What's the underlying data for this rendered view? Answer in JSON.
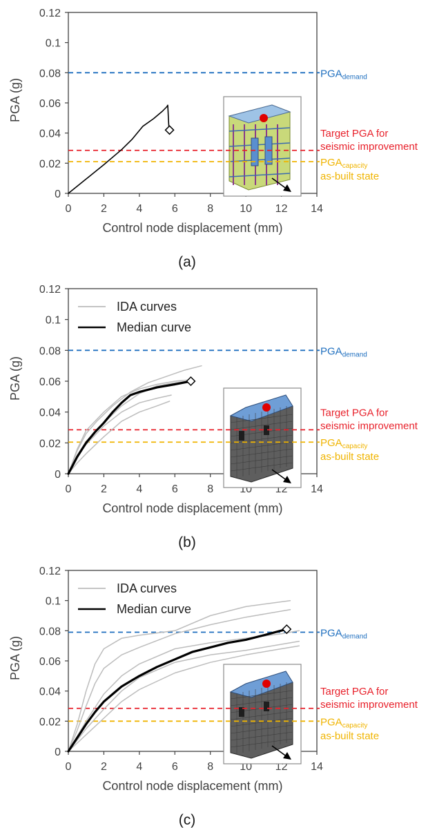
{
  "colors": {
    "demand": "#1f6fbf",
    "target": "#e8212b",
    "capacity": "#f0b400",
    "axis": "#404040",
    "ida": "#bcbcbc",
    "median": "#000000"
  },
  "chart_data": [
    {
      "panel": "(a)",
      "type": "line",
      "xlabel": "Control node displacement (mm)",
      "ylabel": "PGA (g)",
      "xlim": [
        0,
        14
      ],
      "ylim": [
        0,
        0.12
      ],
      "xticks": [
        "0",
        "2",
        "4",
        "6",
        "8",
        "10",
        "12",
        "14"
      ],
      "yticks": [
        "0",
        "0.02",
        "0.04",
        "0.06",
        "0.08",
        "0.1",
        "0.12"
      ],
      "legend": [],
      "series": [
        {
          "kind": "main",
          "x": [
            0,
            1,
            2,
            3,
            3.6,
            4.2,
            4.8,
            5.3,
            5.55,
            5.6,
            5.62,
            5.64,
            5.66,
            5.7
          ],
          "y": [
            0,
            0.0095,
            0.019,
            0.029,
            0.036,
            0.0445,
            0.0495,
            0.0545,
            0.0575,
            0.0585,
            0.054,
            0.049,
            0.045,
            0.042
          ]
        }
      ],
      "marker": {
        "x": 5.7,
        "y": 0.042
      },
      "hlines": {
        "demand": 0.08,
        "target": 0.0285,
        "capacity": 0.021
      },
      "annotations": {
        "demand_base": "PGA",
        "demand_sub": "demand",
        "target_line1": "Target PGA for",
        "target_line2": "seismic improvement",
        "capacity_base": "PGA",
        "capacity_sub": "capacity",
        "capacity_line2": "as-built state"
      },
      "inset": "frame-model"
    },
    {
      "panel": "(b)",
      "type": "line",
      "xlabel": "Control node displacement (mm)",
      "ylabel": "PGA (g)",
      "xlim": [
        0,
        14
      ],
      "ylim": [
        0,
        0.12
      ],
      "xticks": [
        "0",
        "2",
        "4",
        "6",
        "8",
        "10",
        "12",
        "14"
      ],
      "yticks": [
        "0",
        "0.02",
        "0.04",
        "0.06",
        "0.08",
        "0.1",
        "0.12"
      ],
      "legend": [
        "IDA curves",
        "Median curve"
      ],
      "series": [
        {
          "kind": "ida",
          "x": [
            0,
            0.5,
            1,
            1.6,
            2.5,
            3.5,
            4.5,
            5.5,
            6.5,
            7.5
          ],
          "y": [
            0,
            0.015,
            0.026,
            0.034,
            0.044,
            0.053,
            0.059,
            0.063,
            0.067,
            0.07
          ]
        },
        {
          "kind": "ida",
          "x": [
            0,
            0.5,
            1,
            2,
            3,
            4,
            5,
            6,
            7
          ],
          "y": [
            0,
            0.016,
            0.028,
            0.04,
            0.05,
            0.055,
            0.058,
            0.06,
            0.061
          ]
        },
        {
          "kind": "ida",
          "x": [
            0,
            0.5,
            1,
            2,
            3,
            4,
            5,
            6,
            6.8
          ],
          "y": [
            0,
            0.012,
            0.021,
            0.033,
            0.044,
            0.052,
            0.057,
            0.059,
            0.06
          ]
        },
        {
          "kind": "ida",
          "x": [
            0,
            0.5,
            1,
            2,
            3,
            4,
            5,
            5.8
          ],
          "y": [
            0,
            0.011,
            0.019,
            0.031,
            0.04,
            0.046,
            0.049,
            0.051
          ]
        },
        {
          "kind": "ida",
          "x": [
            0,
            0.5,
            1,
            2,
            3,
            4,
            5,
            5.7
          ],
          "y": [
            0,
            0.007,
            0.013,
            0.024,
            0.034,
            0.04,
            0.044,
            0.047
          ]
        },
        {
          "kind": "median",
          "x": [
            0,
            0.5,
            1,
            1.5,
            2,
            2.5,
            3,
            3.5,
            4,
            5,
            6,
            6.9
          ],
          "y": [
            0,
            0.011,
            0.02,
            0.027,
            0.033,
            0.04,
            0.046,
            0.051,
            0.053,
            0.056,
            0.058,
            0.06
          ]
        }
      ],
      "marker": {
        "x": 6.9,
        "y": 0.06
      },
      "hlines": {
        "demand": 0.08,
        "target": 0.0285,
        "capacity": 0.0205
      },
      "annotations": {
        "demand_base": "PGA",
        "demand_sub": "demand",
        "target_line1": "Target PGA for",
        "target_line2": "seismic improvement",
        "capacity_base": "PGA",
        "capacity_sub": "capacity",
        "capacity_line2": "as-built state"
      },
      "inset": "mesh-model"
    },
    {
      "panel": "(c)",
      "type": "line",
      "xlabel": "Control node displacement (mm)",
      "ylabel": "PGA (g)",
      "xlim": [
        0,
        14
      ],
      "ylim": [
        0,
        0.12
      ],
      "xticks": [
        "0",
        "2",
        "4",
        "6",
        "8",
        "10",
        "12",
        "14"
      ],
      "yticks": [
        "0",
        "0.02",
        "0.04",
        "0.06",
        "0.08",
        "0.1",
        "0.12"
      ],
      "legend": [
        "IDA curves",
        "Median curve"
      ],
      "series": [
        {
          "kind": "ida",
          "x": [
            0,
            0.5,
            1,
            1.5,
            2,
            3,
            4,
            6,
            8,
            10,
            12.5
          ],
          "y": [
            0,
            0.018,
            0.04,
            0.058,
            0.068,
            0.075,
            0.077,
            0.08,
            0.09,
            0.096,
            0.1
          ]
        },
        {
          "kind": "ida",
          "x": [
            0,
            0.5,
            1,
            1.5,
            2,
            3,
            4,
            6,
            8,
            10,
            12.5
          ],
          "y": [
            0,
            0.014,
            0.03,
            0.045,
            0.055,
            0.064,
            0.069,
            0.078,
            0.084,
            0.089,
            0.094
          ]
        },
        {
          "kind": "ida",
          "x": [
            0,
            1,
            2,
            3,
            4,
            6,
            8,
            10,
            12,
            13
          ],
          "y": [
            0,
            0.02,
            0.038,
            0.05,
            0.058,
            0.068,
            0.072,
            0.075,
            0.078,
            0.08
          ]
        },
        {
          "kind": "ida",
          "x": [
            0,
            1,
            2,
            3,
            4,
            6,
            8,
            10,
            12,
            13
          ],
          "y": [
            0,
            0.015,
            0.028,
            0.04,
            0.049,
            0.059,
            0.064,
            0.067,
            0.071,
            0.073
          ]
        },
        {
          "kind": "ida",
          "x": [
            0,
            1,
            2,
            3,
            4,
            6,
            8,
            10,
            12,
            13
          ],
          "y": [
            0,
            0.011,
            0.022,
            0.033,
            0.041,
            0.052,
            0.059,
            0.064,
            0.068,
            0.07
          ]
        },
        {
          "kind": "median",
          "x": [
            0,
            0.5,
            1,
            1.5,
            2,
            2.5,
            3,
            4,
            5,
            6,
            7,
            8,
            9,
            10,
            11,
            12.3
          ],
          "y": [
            0,
            0.009,
            0.018,
            0.026,
            0.033,
            0.038,
            0.043,
            0.05,
            0.056,
            0.061,
            0.066,
            0.069,
            0.072,
            0.074,
            0.077,
            0.081
          ]
        }
      ],
      "marker": {
        "x": 12.3,
        "y": 0.081
      },
      "hlines": {
        "demand": 0.079,
        "target": 0.0285,
        "capacity": 0.02
      },
      "annotations": {
        "demand_base": "PGA",
        "demand_sub": "demand",
        "target_line1": "Target PGA for",
        "target_line2": "seismic improvement",
        "capacity_base": "PGA",
        "capacity_sub": "capacity",
        "capacity_line2": "as-built state"
      },
      "inset": "mesh-model"
    }
  ]
}
